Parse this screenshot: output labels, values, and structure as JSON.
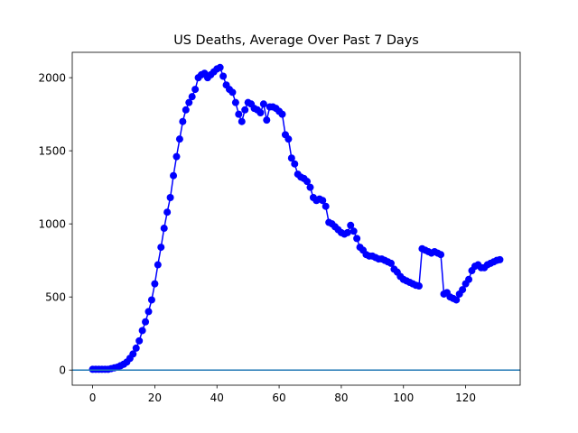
{
  "chart_data": {
    "type": "line",
    "title": "US Deaths, Average Over Past 7 Days",
    "x": [
      0,
      1,
      2,
      3,
      4,
      5,
      6,
      7,
      8,
      9,
      10,
      11,
      12,
      13,
      14,
      15,
      16,
      17,
      18,
      19,
      20,
      21,
      22,
      23,
      24,
      25,
      26,
      27,
      28,
      29,
      30,
      31,
      32,
      33,
      34,
      35,
      36,
      37,
      38,
      39,
      40,
      41,
      42,
      43,
      44,
      45,
      46,
      47,
      48,
      49,
      50,
      51,
      52,
      53,
      54,
      55,
      56,
      57,
      58,
      59,
      60,
      61,
      62,
      63,
      64,
      65,
      66,
      67,
      68,
      69,
      70,
      71,
      72,
      73,
      74,
      75,
      76,
      77,
      78,
      79,
      80,
      81,
      82,
      83,
      84,
      85,
      86,
      87,
      88,
      89,
      90,
      91,
      92,
      93,
      94,
      95,
      96,
      97,
      98,
      99,
      100,
      101,
      102,
      103,
      104,
      105,
      106,
      107,
      108,
      109,
      110,
      111,
      112,
      113,
      114,
      115,
      116,
      117,
      118,
      119,
      120,
      121,
      122,
      123,
      124,
      125,
      126,
      127,
      128,
      129,
      130,
      131
    ],
    "series": [
      {
        "color": "#0000ff",
        "values": [
          5,
          5,
          5,
          5,
          5,
          5,
          10,
          15,
          20,
          30,
          40,
          55,
          80,
          110,
          150,
          200,
          270,
          330,
          400,
          480,
          590,
          720,
          840,
          970,
          1080,
          1180,
          1330,
          1460,
          1580,
          1700,
          1780,
          1830,
          1870,
          1920,
          2000,
          2020,
          2030,
          2000,
          2020,
          2040,
          2060,
          2070,
          2010,
          1950,
          1920,
          1900,
          1830,
          1750,
          1700,
          1780,
          1830,
          1820,
          1790,
          1780,
          1760,
          1820,
          1710,
          1800,
          1800,
          1790,
          1770,
          1750,
          1610,
          1580,
          1450,
          1410,
          1340,
          1320,
          1310,
          1290,
          1250,
          1180,
          1160,
          1170,
          1160,
          1120,
          1010,
          1000,
          980,
          960,
          940,
          930,
          940,
          990,
          950,
          900,
          840,
          820,
          790,
          780,
          780,
          770,
          760,
          760,
          750,
          740,
          730,
          690,
          670,
          640,
          620,
          610,
          600,
          590,
          580,
          575,
          830,
          820,
          810,
          800,
          810,
          800,
          790,
          520,
          530,
          500,
          490,
          480,
          520,
          550,
          590,
          620,
          680,
          710,
          720,
          700,
          700,
          720,
          730,
          740,
          750,
          755
        ]
      }
    ],
    "axhline": {
      "y": 0,
      "color": "#1f77b4"
    },
    "xlim": [
      -6.55,
      137.55
    ],
    "ylim": [
      -103.5,
      2173.5
    ],
    "xticks": [
      0,
      20,
      40,
      60,
      80,
      100,
      120
    ],
    "yticks": [
      0,
      500,
      1000,
      1500,
      2000
    ]
  }
}
